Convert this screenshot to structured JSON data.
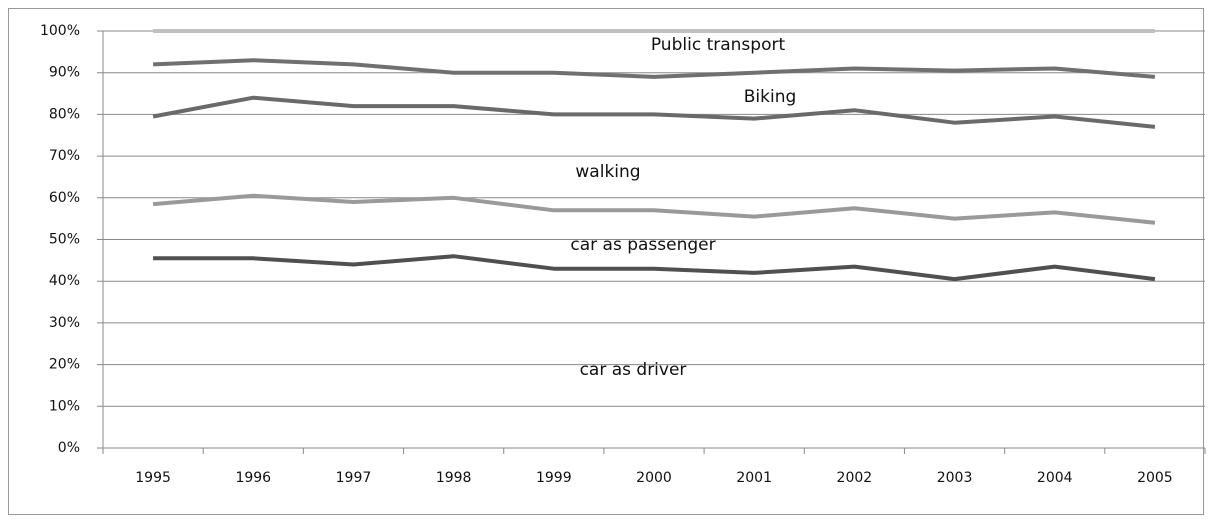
{
  "chart_data": {
    "type": "stacked_line",
    "categories": [
      "1995",
      "1996",
      "1997",
      "1998",
      "1999",
      "2000",
      "2001",
      "2002",
      "2003",
      "2004",
      "2005"
    ],
    "series": [
      {
        "name": "car as driver",
        "color": "#505050",
        "values": [
          45.5,
          45.5,
          44,
          46,
          43,
          43,
          42,
          43.5,
          40.5,
          43.5,
          40.5
        ]
      },
      {
        "name": "car as passenger",
        "color": "#9a9a9a",
        "values": [
          13,
          15,
          15,
          14,
          14,
          14,
          13.5,
          14,
          14.5,
          13,
          13.5
        ]
      },
      {
        "name": "walking",
        "color": "#6a6a6a",
        "values": [
          21,
          23.5,
          23,
          22,
          23,
          23,
          23.5,
          23.5,
          23,
          23,
          23
        ]
      },
      {
        "name": "Biking",
        "color": "#707070",
        "values": [
          12.5,
          9,
          10,
          8,
          10,
          9,
          11,
          10,
          12.5,
          11.5,
          12
        ]
      },
      {
        "name": "Public transport",
        "color": "#c0c0c0",
        "values": [
          8,
          7,
          8,
          10,
          10,
          11,
          10,
          9,
          9.5,
          9,
          11
        ]
      }
    ],
    "ylim": [
      0,
      100
    ],
    "yticks": [
      {
        "value": 0,
        "label": "0%"
      },
      {
        "value": 10,
        "label": "10%"
      },
      {
        "value": 20,
        "label": "20%"
      },
      {
        "value": 30,
        "label": "30%"
      },
      {
        "value": 40,
        "label": "40%"
      },
      {
        "value": 50,
        "label": "50%"
      },
      {
        "value": 60,
        "label": "60%"
      },
      {
        "value": 70,
        "label": "70%"
      },
      {
        "value": 80,
        "label": "80%"
      },
      {
        "value": 90,
        "label": "90%"
      },
      {
        "value": 100,
        "label": "100%"
      }
    ],
    "grid": true
  }
}
